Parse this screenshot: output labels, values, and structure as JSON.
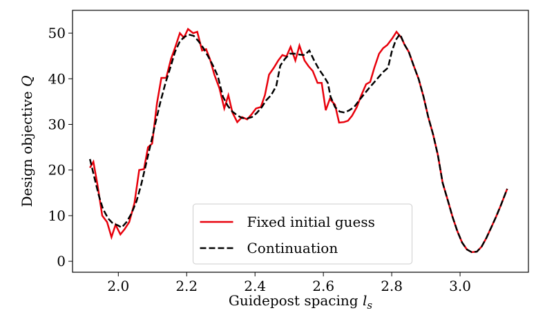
{
  "chart_data": {
    "type": "line",
    "x_label": "Guidepost spacing",
    "x_label_symbol": "l",
    "x_label_subscript": "s",
    "y_label": "Design objective",
    "y_label_symbol": "Q",
    "xlim": [
      1.866,
      3.2
    ],
    "ylim": [
      -2.4,
      55
    ],
    "xticks": [
      {
        "value": 2.0,
        "label": "2.0"
      },
      {
        "value": 2.2,
        "label": "2.2"
      },
      {
        "value": 2.4,
        "label": "2.4"
      },
      {
        "value": 2.6,
        "label": "2.6"
      },
      {
        "value": 2.8,
        "label": "2.8"
      },
      {
        "value": 3.0,
        "label": "3.0"
      }
    ],
    "yticks": [
      0,
      10,
      20,
      30,
      40,
      50
    ],
    "grid": false,
    "legend": "lower center",
    "series": [
      {
        "name": "Fixed initial guess",
        "color": "#e8000b",
        "dash": "solid",
        "x": [
          1.917,
          1.927,
          1.939,
          1.953,
          1.967,
          1.98,
          1.992,
          2.006,
          2.018,
          2.032,
          2.047,
          2.061,
          2.075,
          2.087,
          2.099,
          2.113,
          2.126,
          2.14,
          2.154,
          2.166,
          2.18,
          2.192,
          2.204,
          2.219,
          2.231,
          2.245,
          2.257,
          2.269,
          2.281,
          2.296,
          2.31,
          2.322,
          2.334,
          2.348,
          2.362,
          2.377,
          2.391,
          2.403,
          2.417,
          2.429,
          2.441,
          2.455,
          2.468,
          2.48,
          2.492,
          2.504,
          2.518,
          2.53,
          2.545,
          2.557,
          2.569,
          2.583,
          2.595,
          2.607,
          2.619,
          2.634,
          2.646,
          2.66,
          2.672,
          2.684,
          2.698,
          2.711,
          2.725,
          2.737,
          2.749,
          2.763,
          2.775,
          2.787,
          2.802,
          2.814,
          2.828,
          2.838,
          2.85,
          2.864,
          2.879,
          2.893,
          2.907,
          2.921,
          2.935,
          2.949,
          2.964,
          2.978,
          2.992,
          3.006,
          3.02,
          3.034,
          3.049,
          3.063,
          3.077,
          3.091,
          3.105,
          3.119,
          3.138
        ],
        "values": [
          20.5,
          21.8,
          16.8,
          10,
          8.6,
          5.3,
          8,
          5.9,
          7,
          8.6,
          12.7,
          20,
          20.2,
          25,
          25.8,
          34.6,
          40.2,
          40.2,
          44.3,
          46.8,
          50,
          49,
          50.9,
          50,
          50.3,
          46.2,
          46.5,
          44.1,
          40.9,
          37.9,
          33.5,
          36.4,
          32.6,
          30.5,
          31.6,
          31.1,
          32.3,
          33.5,
          33.8,
          36.4,
          40.9,
          42.4,
          44,
          45.2,
          44.9,
          47,
          44,
          47.3,
          44,
          42.7,
          41.7,
          39.1,
          39.1,
          33.1,
          35.6,
          34.3,
          30.4,
          30.5,
          30.8,
          31.9,
          33.8,
          36.4,
          38.8,
          39.3,
          42.4,
          45.5,
          46.7,
          47.4,
          48.9,
          50.3,
          49,
          47.4,
          45.9,
          42.9,
          39.9,
          36.1,
          31.6,
          27.8,
          23.3,
          17.2,
          13.4,
          9.7,
          6.6,
          4.1,
          2.6,
          2,
          2.1,
          3.2,
          5.1,
          7.4,
          9.7,
          12.2,
          15.9
        ]
      },
      {
        "name": "Continuation",
        "color": "#000000",
        "dash": "dashed",
        "x": [
          1.917,
          1.931,
          1.943,
          1.955,
          1.97,
          1.984,
          1.998,
          2.01,
          2.024,
          2.038,
          2.053,
          2.067,
          2.081,
          2.095,
          2.109,
          2.123,
          2.138,
          2.152,
          2.166,
          2.18,
          2.192,
          2.206,
          2.221,
          2.235,
          2.249,
          2.263,
          2.277,
          2.291,
          2.306,
          2.32,
          2.334,
          2.348,
          2.362,
          2.377,
          2.391,
          2.405,
          2.419,
          2.433,
          2.447,
          2.462,
          2.474,
          2.488,
          2.502,
          2.516,
          2.53,
          2.545,
          2.559,
          2.573,
          2.587,
          2.601,
          2.613,
          2.621,
          2.634,
          2.648,
          2.662,
          2.676,
          2.69,
          2.704,
          2.719,
          2.733,
          2.747,
          2.761,
          2.775,
          2.789,
          2.8,
          2.812,
          2.824,
          2.838,
          2.85,
          2.864,
          2.879,
          2.893,
          2.907,
          2.921,
          2.935,
          2.949,
          2.964,
          2.978,
          2.992,
          3.006,
          3.02,
          3.034,
          3.049,
          3.063,
          3.077,
          3.091,
          3.105,
          3.119,
          3.138
        ],
        "values": [
          22.4,
          18,
          14.4,
          11.5,
          9.4,
          8.3,
          7.9,
          7.4,
          8.6,
          10.4,
          13.1,
          16.8,
          21.3,
          25.8,
          30.4,
          34.9,
          39.1,
          42.4,
          45.9,
          48.2,
          49.1,
          49.7,
          49.4,
          48.2,
          46.7,
          44.9,
          42.9,
          40.6,
          36.1,
          34.1,
          32.8,
          32,
          31.4,
          31.3,
          31.6,
          32.5,
          33.7,
          35.3,
          36.4,
          38.4,
          42.9,
          44.4,
          45.5,
          45.5,
          45.3,
          45.2,
          46.2,
          44,
          42.1,
          40.6,
          39.1,
          36.1,
          33.8,
          32.8,
          32.6,
          33.1,
          33.8,
          35.2,
          36.6,
          37.9,
          39.1,
          40.3,
          41.5,
          42.4,
          45.9,
          48.5,
          49.8,
          47.4,
          45.9,
          42.9,
          39.9,
          36.1,
          31.6,
          27.8,
          23.3,
          17.2,
          13.4,
          9.7,
          6.6,
          4.1,
          2.6,
          2,
          2.1,
          3.2,
          5.1,
          7.4,
          9.7,
          12.2,
          15.9
        ]
      }
    ]
  }
}
